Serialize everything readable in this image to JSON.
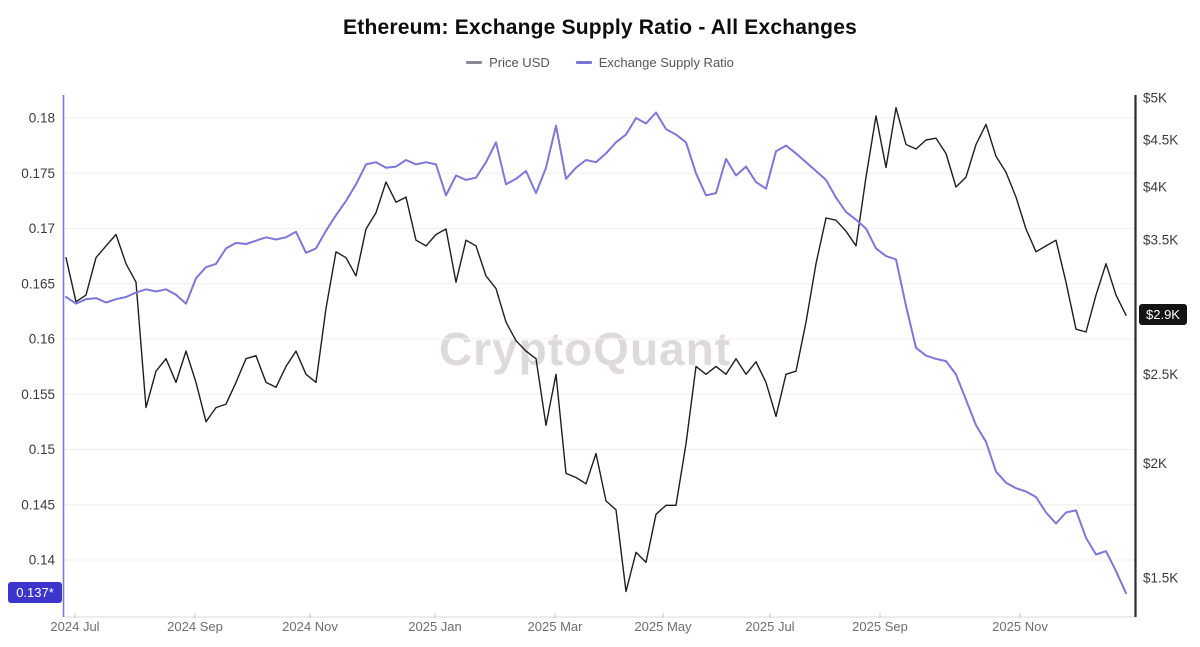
{
  "title": "Ethereum: Exchange Supply Ratio - All Exchanges",
  "watermark": "CryptoQuant",
  "legend": [
    {
      "label": "Price USD",
      "swatch_color": "#8a8a93"
    },
    {
      "label": "Exchange Supply Ratio",
      "swatch_color": "#7d77d8"
    }
  ],
  "badges": {
    "current_ratio": "0.137*",
    "current_price": "$2.9K"
  },
  "chart_data": {
    "type": "line",
    "title": "Ethereum: Exchange Supply Ratio - All Exchanges",
    "grid": "horizontal",
    "legend_position": "top",
    "x_axis": {
      "tick_labels": [
        "2024 Jul",
        "2024 Sep",
        "2024 Nov",
        "2025 Jan",
        "2025 Mar",
        "2025 May",
        "2025 Jul",
        "2025 Sep",
        "2025 Nov"
      ]
    },
    "y_axis_left": {
      "name": "Exchange Supply Ratio",
      "scale": "linear",
      "range": [
        0.1348,
        0.1821
      ],
      "axis_color": "#7d77d8",
      "ticks": [
        {
          "label": "0.18",
          "value": 0.18
        },
        {
          "label": "0.175",
          "value": 0.175
        },
        {
          "label": "0.17",
          "value": 0.17
        },
        {
          "label": "0.165",
          "value": 0.165
        },
        {
          "label": "0.16",
          "value": 0.16
        },
        {
          "label": "0.155",
          "value": 0.155
        },
        {
          "label": "0.15",
          "value": 0.15
        },
        {
          "label": "0.145",
          "value": 0.145
        },
        {
          "label": "0.14",
          "value": 0.14
        }
      ],
      "current": {
        "label": "0.137*",
        "value": 0.137,
        "badge_color": "#3c35cc"
      }
    },
    "y_axis_right": {
      "name": "Price USD",
      "scale": "log",
      "range": [
        1.36,
        5.04
      ],
      "unit": "$K",
      "axis_color": "#2b2b2b",
      "ticks": [
        {
          "label": "$5K",
          "value": 5
        },
        {
          "label": "$4.5K",
          "value": 4.5
        },
        {
          "label": "$4K",
          "value": 4
        },
        {
          "label": "$3.5K",
          "value": 3.5
        },
        {
          "label": "$2.5K",
          "value": 2.5
        },
        {
          "label": "$2K",
          "value": 2
        },
        {
          "label": "$1.5K",
          "value": 1.5
        }
      ],
      "current": {
        "label": "$2.9K",
        "value": 2.9,
        "badge_color": "#141414"
      }
    },
    "x_range_note": "evenly spaced samples from late Jun 2024 to late Dec 2025",
    "series": [
      {
        "name": "Price USD",
        "axis": "right",
        "color": "#1e1e1e",
        "values": [
          3.35,
          3.0,
          3.05,
          3.35,
          3.45,
          3.55,
          3.3,
          3.15,
          2.3,
          2.52,
          2.6,
          2.45,
          2.65,
          2.45,
          2.22,
          2.3,
          2.32,
          2.45,
          2.6,
          2.62,
          2.45,
          2.42,
          2.55,
          2.65,
          2.5,
          2.45,
          2.95,
          3.4,
          3.35,
          3.2,
          3.6,
          3.75,
          4.05,
          3.85,
          3.9,
          3.5,
          3.45,
          3.55,
          3.6,
          3.15,
          3.5,
          3.45,
          3.2,
          3.1,
          2.85,
          2.72,
          2.65,
          2.6,
          2.2,
          2.5,
          1.95,
          1.93,
          1.9,
          2.05,
          1.82,
          1.78,
          1.45,
          1.6,
          1.56,
          1.76,
          1.8,
          1.8,
          2.1,
          2.55,
          2.5,
          2.55,
          2.5,
          2.6,
          2.5,
          2.58,
          2.45,
          2.25,
          2.5,
          2.52,
          2.85,
          3.3,
          3.7,
          3.68,
          3.58,
          3.45,
          4.1,
          4.78,
          4.2,
          4.88,
          4.45,
          4.4,
          4.5,
          4.52,
          4.35,
          4.0,
          4.1,
          4.45,
          4.68,
          4.32,
          4.15,
          3.9,
          3.6,
          3.4,
          3.45,
          3.5,
          3.15,
          2.8,
          2.78,
          3.05,
          3.3,
          3.05,
          2.9
        ]
      },
      {
        "name": "Exchange Supply Ratio",
        "axis": "left",
        "color": "#7d77d8",
        "values": [
          0.1638,
          0.1632,
          0.1636,
          0.1637,
          0.1633,
          0.1636,
          0.1638,
          0.1642,
          0.1645,
          0.1643,
          0.1645,
          0.164,
          0.1632,
          0.1655,
          0.1665,
          0.1668,
          0.1682,
          0.1687,
          0.1686,
          0.1689,
          0.1692,
          0.169,
          0.1692,
          0.1697,
          0.1678,
          0.1682,
          0.1698,
          0.1712,
          0.1725,
          0.174,
          0.1758,
          0.176,
          0.1755,
          0.1756,
          0.1762,
          0.1758,
          0.176,
          0.1758,
          0.173,
          0.1748,
          0.1744,
          0.1746,
          0.176,
          0.1778,
          0.174,
          0.1745,
          0.1752,
          0.1732,
          0.1755,
          0.1793,
          0.1745,
          0.1755,
          0.1762,
          0.176,
          0.1768,
          0.1778,
          0.1785,
          0.18,
          0.1795,
          0.1805,
          0.179,
          0.1785,
          0.1778,
          0.175,
          0.173,
          0.1732,
          0.1763,
          0.1748,
          0.1756,
          0.1742,
          0.1736,
          0.177,
          0.1775,
          0.1768,
          0.176,
          0.1752,
          0.1744,
          0.1728,
          0.1715,
          0.1708,
          0.17,
          0.1682,
          0.1675,
          0.1672,
          0.163,
          0.1592,
          0.1585,
          0.1582,
          0.158,
          0.1568,
          0.1545,
          0.1522,
          0.1507,
          0.148,
          0.147,
          0.1465,
          0.1462,
          0.1457,
          0.1443,
          0.1433,
          0.1443,
          0.1445,
          0.142,
          0.1405,
          0.1408,
          0.139,
          0.137
        ]
      }
    ]
  }
}
